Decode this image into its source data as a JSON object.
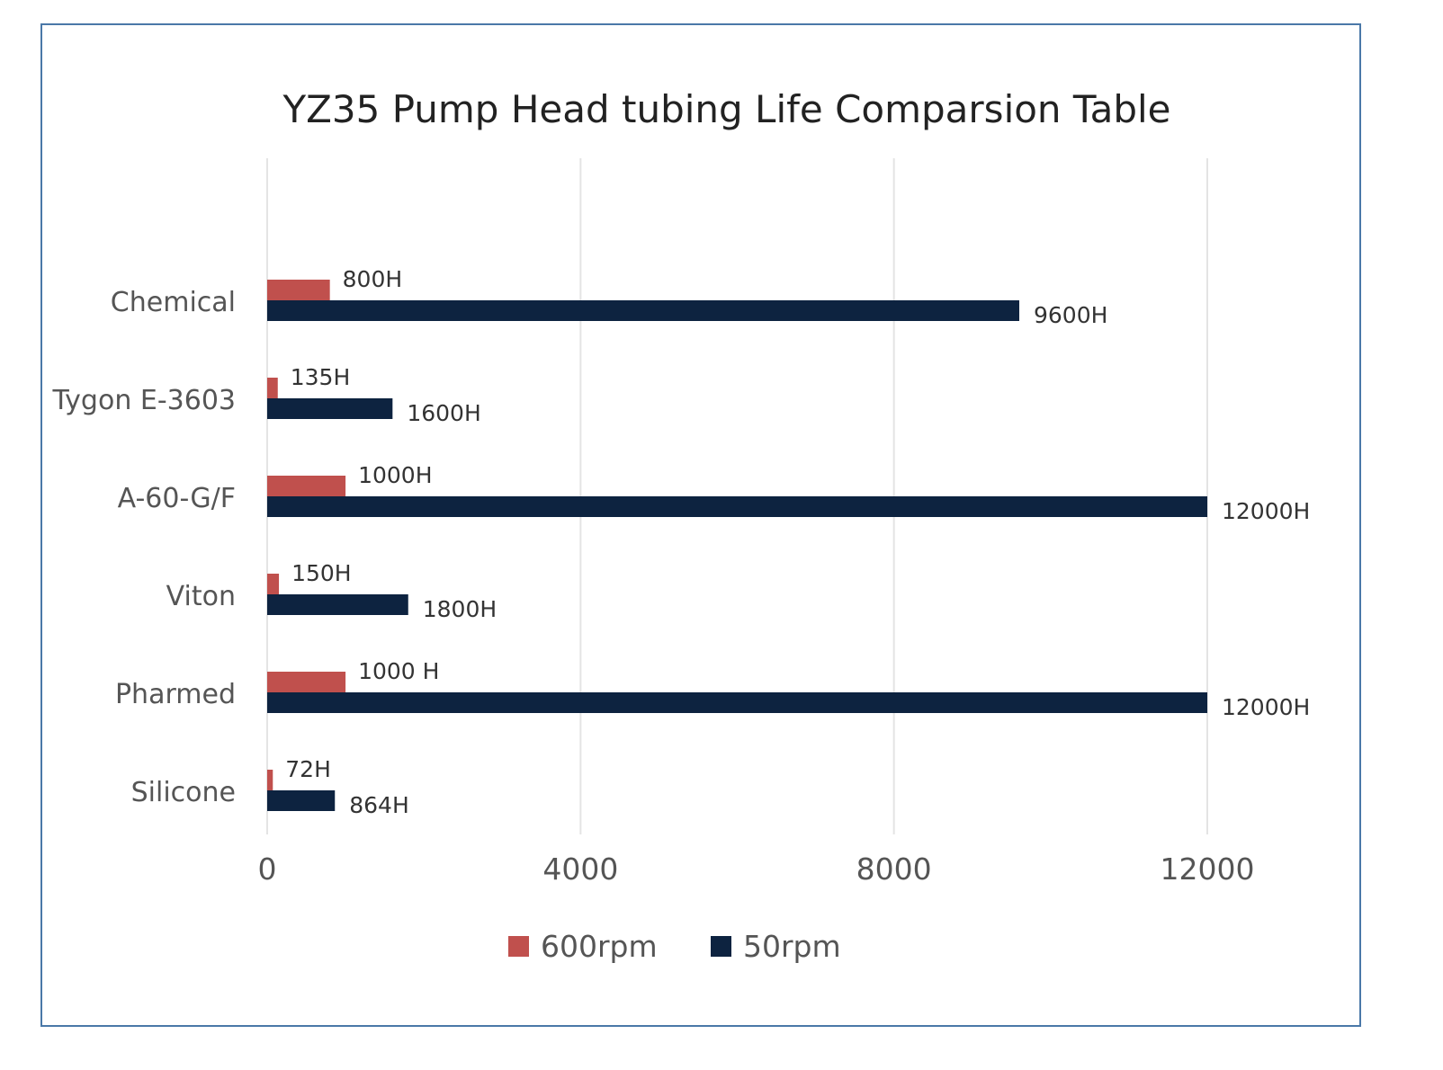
{
  "chart_data": {
    "type": "bar",
    "orientation": "horizontal",
    "title": "YZ35 Pump Head tubing Life Comparsion Table",
    "xlabel": "",
    "ylabel": "",
    "xlim": [
      0,
      12000
    ],
    "xticks": [
      "0",
      "4000",
      "8000",
      "12000"
    ],
    "grid": true,
    "legend_position": "bottom",
    "categories": [
      "Chemical",
      "Tygon E-3603",
      "A-60-G/F",
      "Viton",
      "Pharmed",
      "Silicone"
    ],
    "series": [
      {
        "name": "600rpm",
        "color": "#c0504d",
        "values": [
          800,
          135,
          1000,
          150,
          1000,
          72
        ],
        "labels": [
          "800H",
          "135H",
          "1000H",
          "150H",
          "1000 H",
          "72H"
        ]
      },
      {
        "name": "50rpm",
        "color": "#0d2340",
        "values": [
          9600,
          1600,
          12000,
          1800,
          12000,
          864
        ],
        "labels": [
          "9600H",
          "1600H",
          "12000H",
          "1800H",
          "12000H",
          "864H"
        ]
      }
    ]
  }
}
